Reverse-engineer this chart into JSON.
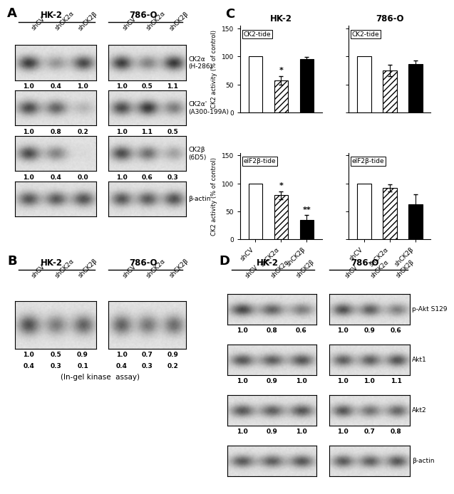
{
  "panel_A": {
    "blots": [
      {
        "label": "CK2α\n(H-286)",
        "hk2_values": [
          1.0,
          0.4,
          1.0
        ],
        "hk2_intensities": [
          0.85,
          0.38,
          0.78
        ],
        "786o_values": [
          1.0,
          0.5,
          1.1
        ],
        "786o_intensities": [
          0.85,
          0.48,
          0.88
        ]
      },
      {
        "label": "CK2α'\n(A300-199A)",
        "hk2_values": [
          1.0,
          0.8,
          0.2
        ],
        "hk2_intensities": [
          0.78,
          0.65,
          0.22
        ],
        "786o_values": [
          1.0,
          1.1,
          0.5
        ],
        "786o_intensities": [
          0.78,
          0.88,
          0.52
        ]
      },
      {
        "label": "CK2β\n(6D5)",
        "hk2_values": [
          1.0,
          0.4,
          0.0
        ],
        "hk2_intensities": [
          0.78,
          0.48,
          0.04
        ],
        "786o_values": [
          1.0,
          0.6,
          0.3
        ],
        "786o_intensities": [
          0.78,
          0.58,
          0.32
        ]
      },
      {
        "label": "β-actin",
        "hk2_values": null,
        "hk2_intensities": [
          0.72,
          0.7,
          0.74
        ],
        "786o_values": null,
        "786o_intensities": [
          0.72,
          0.7,
          0.74
        ]
      }
    ]
  },
  "panel_B": {
    "hk2_values_row1": [
      1.0,
      0.5,
      0.9
    ],
    "hk2_values_row2": [
      0.4,
      0.3,
      0.1
    ],
    "hk2_intensities": [
      0.75,
      0.52,
      0.65
    ],
    "786o_values_row1": [
      1.0,
      0.7,
      0.9
    ],
    "786o_values_row2": [
      0.4,
      0.3,
      0.2
    ],
    "786o_intensities": [
      0.65,
      0.55,
      0.6
    ],
    "label": "(In-gel kinase  assay)"
  },
  "panel_C": {
    "subpanels": [
      {
        "subplot_label": "CK2-tide",
        "hk2_bars": [
          100,
          57,
          95
        ],
        "hk2_errors": [
          0,
          8,
          4
        ],
        "hk2_sig": [
          "",
          "*",
          ""
        ],
        "786o_bars": [
          100,
          75,
          86
        ],
        "786o_errors": [
          0,
          10,
          7
        ],
        "786o_sig": [
          "",
          "",
          ""
        ]
      },
      {
        "subplot_label": "eIF2β-tide",
        "hk2_bars": [
          100,
          79,
          35
        ],
        "hk2_errors": [
          0,
          7,
          8
        ],
        "hk2_sig": [
          "",
          "*",
          "**"
        ],
        "786o_bars": [
          100,
          92,
          62
        ],
        "786o_errors": [
          0,
          6,
          18
        ],
        "786o_sig": [
          "",
          "",
          ""
        ]
      }
    ]
  },
  "panel_D": {
    "blots": [
      {
        "label": "p-Akt S129",
        "hk2_values": [
          1.0,
          0.8,
          0.6
        ],
        "hk2_intensities": [
          0.8,
          0.66,
          0.52
        ],
        "786o_values": [
          1.0,
          0.9,
          0.6
        ],
        "786o_intensities": [
          0.75,
          0.68,
          0.5
        ]
      },
      {
        "label": "Akt1",
        "hk2_values": [
          1.0,
          0.9,
          1.0
        ],
        "hk2_intensities": [
          0.72,
          0.68,
          0.73
        ],
        "786o_values": [
          1.0,
          1.0,
          1.1
        ],
        "786o_intensities": [
          0.68,
          0.68,
          0.74
        ]
      },
      {
        "label": "Akt2",
        "hk2_values": [
          1.0,
          0.9,
          1.0
        ],
        "hk2_intensities": [
          0.72,
          0.68,
          0.73
        ],
        "786o_values": [
          1.0,
          0.7,
          0.8
        ],
        "786o_intensities": [
          0.72,
          0.57,
          0.64
        ]
      },
      {
        "label": "β-actin",
        "hk2_values": null,
        "hk2_intensities": [
          0.7,
          0.68,
          0.72
        ],
        "786o_values": null,
        "786o_intensities": [
          0.7,
          0.68,
          0.72
        ]
      }
    ]
  },
  "cond_labels": [
    "shCV",
    "shCK2α",
    "shCK2β"
  ]
}
